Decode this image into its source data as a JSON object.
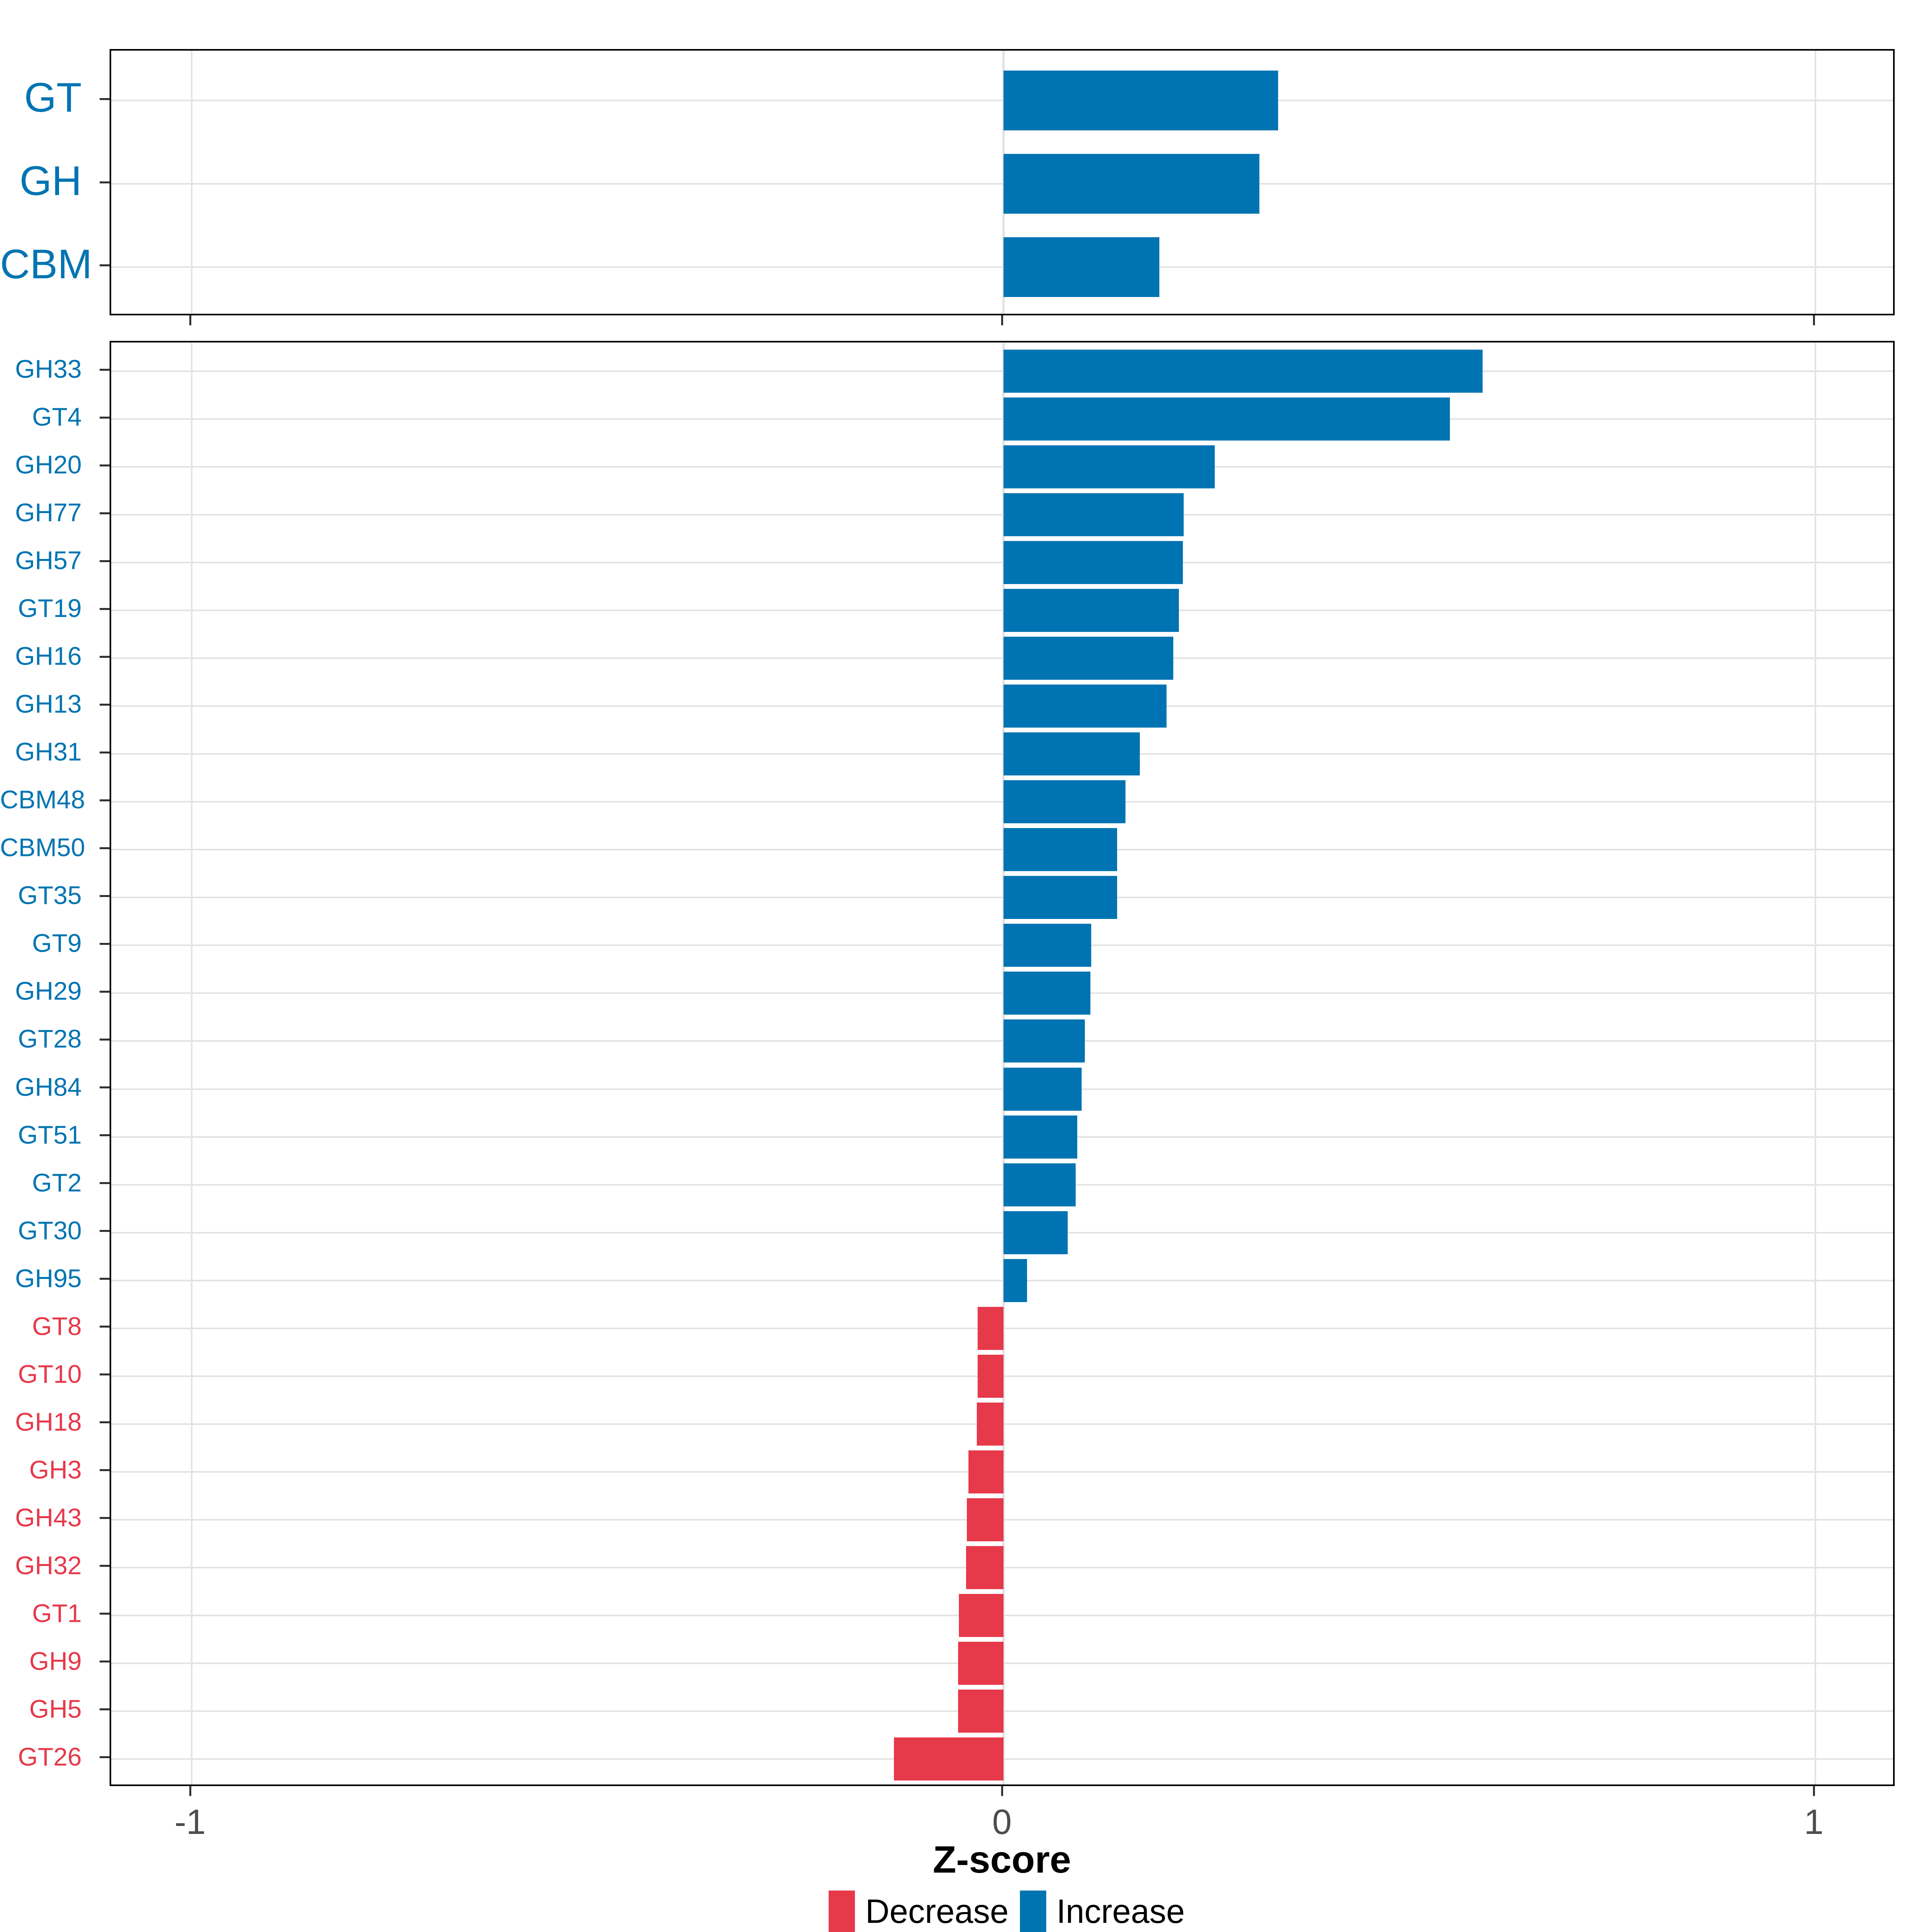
{
  "figure": {
    "background": "#ffffff",
    "xlabel": "Z-score",
    "x_axis": {
      "tick_values": [
        -1,
        0,
        1
      ],
      "tick_labels": [
        "-1",
        "0",
        "1"
      ],
      "xlim": [
        -1.1,
        1.1
      ]
    },
    "colors": {
      "increase": "#0074b2",
      "decrease": "#e6394a",
      "grid": "#e3e3e3",
      "panel_border": "#000000",
      "tick_text": "#4d4d4d"
    },
    "legend": {
      "items": [
        {
          "label": "Decrease",
          "color": "#e6394a"
        },
        {
          "label": "Increase",
          "color": "#0074b2"
        }
      ]
    }
  },
  "chart_data": [
    {
      "type": "bar",
      "orientation": "horizontal",
      "panel": "summary",
      "title": "",
      "xlabel": "Z-score",
      "xlim": [
        -1.1,
        1.1
      ],
      "grid": true,
      "categories": [
        "GT",
        "GH",
        "CBM"
      ],
      "values": [
        0.338,
        0.315,
        0.192
      ],
      "direction": [
        "Increase",
        "Increase",
        "Increase"
      ]
    },
    {
      "type": "bar",
      "orientation": "horizontal",
      "panel": "families",
      "title": "",
      "xlabel": "Z-score",
      "xlim": [
        -1.1,
        1.1
      ],
      "grid": true,
      "categories": [
        "GH33",
        "GT4",
        "GH20",
        "GH77",
        "GH57",
        "GT19",
        "GH16",
        "GH13",
        "GH31",
        "CBM48",
        "CBM50",
        "GT35",
        "GT9",
        "GH29",
        "GT28",
        "GH84",
        "GT51",
        "GT2",
        "GT30",
        "GH95",
        "GT8",
        "GT10",
        "GH18",
        "GH3",
        "GH43",
        "GH32",
        "GT1",
        "GH9",
        "GH5",
        "GT26"
      ],
      "values": [
        0.59,
        0.55,
        0.26,
        0.222,
        0.221,
        0.216,
        0.209,
        0.201,
        0.168,
        0.15,
        0.14,
        0.14,
        0.108,
        0.107,
        0.1,
        0.096,
        0.091,
        0.089,
        0.079,
        0.029,
        -0.032,
        -0.032,
        -0.033,
        -0.043,
        -0.045,
        -0.046,
        -0.055,
        -0.056,
        -0.056,
        -0.135
      ],
      "direction": [
        "Increase",
        "Increase",
        "Increase",
        "Increase",
        "Increase",
        "Increase",
        "Increase",
        "Increase",
        "Increase",
        "Increase",
        "Increase",
        "Increase",
        "Increase",
        "Increase",
        "Increase",
        "Increase",
        "Increase",
        "Increase",
        "Increase",
        "Increase",
        "Decrease",
        "Decrease",
        "Decrease",
        "Decrease",
        "Decrease",
        "Decrease",
        "Decrease",
        "Decrease",
        "Decrease",
        "Decrease"
      ]
    }
  ]
}
